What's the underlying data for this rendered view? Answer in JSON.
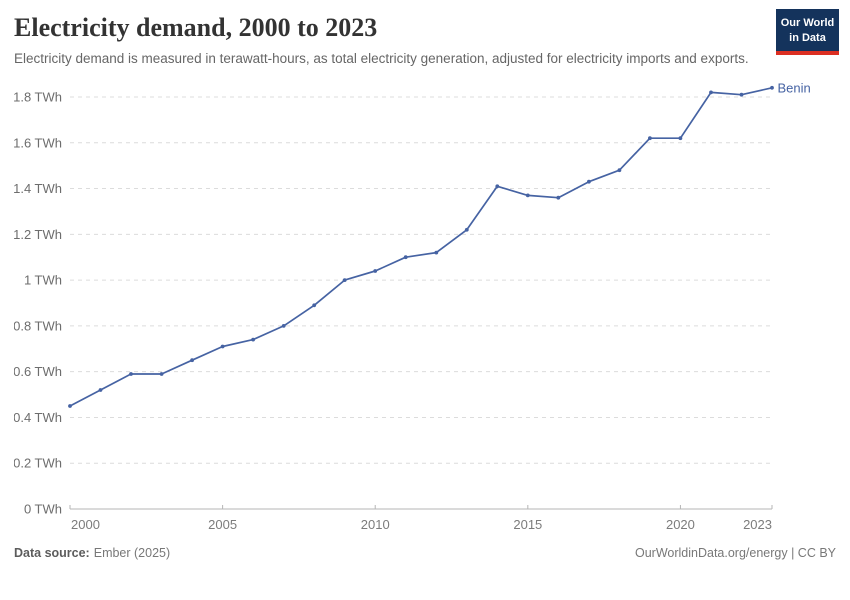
{
  "header": {
    "title": "Electricity demand, 2000 to 2023",
    "subtitle": "Electricity demand is measured in terawatt-hours, as total electricity generation, adjusted for electricity imports and exports.",
    "logo": {
      "line1": "Our World",
      "line2": "in Data",
      "bg_color": "#14335c",
      "stripe_color": "#dc2f22"
    }
  },
  "chart_data": {
    "type": "line",
    "title": "Electricity demand, 2000 to 2023",
    "xlabel": "",
    "ylabel": "",
    "unit": "TWh",
    "grid": "horizontal-dashed",
    "legend": "end-of-line-label",
    "xlim": [
      2000,
      2023
    ],
    "ylim": [
      0,
      1.8
    ],
    "x_ticks": [
      2000,
      2005,
      2010,
      2015,
      2020,
      2023
    ],
    "y_ticks": [
      0,
      0.2,
      0.4,
      0.6,
      0.8,
      1,
      1.2,
      1.4,
      1.6,
      1.8
    ],
    "y_tick_labels": [
      "0 TWh",
      "0.2 TWh",
      "0.4 TWh",
      "0.6 TWh",
      "0.8 TWh",
      "1 TWh",
      "1.2 TWh",
      "1.4 TWh",
      "1.6 TWh",
      "1.8 TWh"
    ],
    "series": [
      {
        "name": "Benin",
        "color": "#4663a3",
        "x": [
          2000,
          2001,
          2002,
          2003,
          2004,
          2005,
          2006,
          2007,
          2008,
          2009,
          2010,
          2011,
          2012,
          2013,
          2014,
          2015,
          2016,
          2017,
          2018,
          2019,
          2020,
          2021,
          2022,
          2023
        ],
        "values": [
          0.45,
          0.52,
          0.59,
          0.59,
          0.65,
          0.71,
          0.74,
          0.8,
          0.89,
          1.0,
          1.04,
          1.1,
          1.12,
          1.22,
          1.41,
          1.37,
          1.36,
          1.43,
          1.48,
          1.62,
          1.62,
          1.82,
          1.81,
          1.84
        ]
      }
    ]
  },
  "footer": {
    "source_label": "Data source:",
    "source_value": "Ember (2025)",
    "credit": "OurWorldinData.org/energy | CC BY"
  }
}
